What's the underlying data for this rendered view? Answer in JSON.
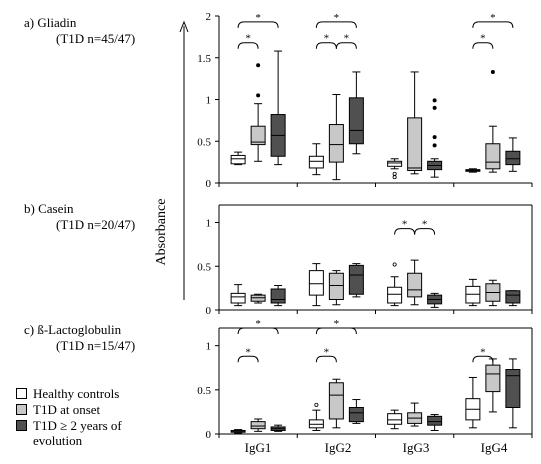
{
  "ylabel": "Absorbance",
  "legend": [
    {
      "label": "Healthy controls",
      "color": "#ffffff"
    },
    {
      "label": "T1D at onset",
      "color": "#c8c8c8"
    },
    {
      "label": "T1D ≥ 2 years of",
      "label2": "evolution",
      "color": "#505050"
    }
  ],
  "chart_data": [
    {
      "type": "boxplot",
      "title": "a) Gliadin",
      "subtitle": "(T1D n=45/47)",
      "categories": [
        "IgG1",
        "IgG2",
        "IgG3",
        "IgG4"
      ],
      "ylim": [
        0,
        2
      ],
      "yticks": [
        "0",
        "0.5",
        "1",
        "1.5",
        "2"
      ],
      "groups": [
        "Healthy controls",
        "T1D at onset",
        "T1D ≥ 2 years of evolution"
      ],
      "boxes": [
        [
          {
            "min": 0.22,
            "q1": 0.23,
            "med": 0.29,
            "q3": 0.33,
            "max": 0.37,
            "outliers": []
          },
          {
            "min": 0.26,
            "q1": 0.46,
            "med": 0.49,
            "q3": 0.68,
            "max": 0.95,
            "outliers": [
              1.05,
              1.41
            ]
          },
          {
            "min": 0.22,
            "q1": 0.32,
            "med": 0.57,
            "q3": 0.82,
            "max": 1.58,
            "outliers": []
          }
        ],
        [
          {
            "min": 0.1,
            "q1": 0.18,
            "med": 0.26,
            "q3": 0.32,
            "max": 0.47,
            "outliers": []
          },
          {
            "min": 0.04,
            "q1": 0.25,
            "med": 0.46,
            "q3": 0.7,
            "max": 1.06,
            "outliers": []
          },
          {
            "min": 0.35,
            "q1": 0.47,
            "med": 0.63,
            "q3": 1.02,
            "max": 1.33,
            "outliers": []
          }
        ],
        [
          {
            "min": 0.17,
            "q1": 0.2,
            "med": 0.24,
            "q3": 0.26,
            "max": 0.29,
            "outliers": [
              0.07,
              0.11
            ]
          },
          {
            "min": 0.11,
            "q1": 0.15,
            "med": 0.18,
            "q3": 0.78,
            "max": 1.33,
            "outliers": []
          },
          {
            "min": 0.07,
            "q1": 0.16,
            "med": 0.21,
            "q3": 0.26,
            "max": 0.29,
            "outliers": [
              0.45,
              0.55,
              0.9,
              0.99
            ]
          }
        ],
        [
          {
            "min": 0.13,
            "q1": 0.14,
            "med": 0.15,
            "q3": 0.16,
            "max": 0.17,
            "outliers": []
          },
          {
            "min": 0.13,
            "q1": 0.17,
            "med": 0.25,
            "q3": 0.47,
            "max": 0.68,
            "outliers": [
              1.33
            ]
          },
          {
            "min": 0.14,
            "q1": 0.22,
            "med": 0.29,
            "q3": 0.38,
            "max": 0.54,
            "outliers": []
          }
        ]
      ],
      "significance": [
        {
          "from": [
            0,
            0
          ],
          "to": [
            0,
            1
          ],
          "y": 1.68,
          "label": "*"
        },
        {
          "from": [
            0,
            0
          ],
          "to": [
            0,
            2
          ],
          "y": 1.93,
          "label": "*"
        },
        {
          "from": [
            1,
            0
          ],
          "to": [
            1,
            1
          ],
          "y": 1.68,
          "label": "*"
        },
        {
          "from": [
            1,
            1
          ],
          "to": [
            1,
            2
          ],
          "y": 1.68,
          "label": "*"
        },
        {
          "from": [
            1,
            0
          ],
          "to": [
            1,
            2
          ],
          "y": 1.93,
          "label": "*"
        },
        {
          "from": [
            3,
            0
          ],
          "to": [
            3,
            1
          ],
          "y": 1.68,
          "label": "*"
        },
        {
          "from": [
            3,
            0
          ],
          "to": [
            3,
            2
          ],
          "y": 1.93,
          "label": "*"
        }
      ]
    },
    {
      "type": "boxplot",
      "title": "b) Casein",
      "subtitle": "(T1D n=20/47)",
      "categories": [
        "IgG1",
        "IgG2",
        "IgG3",
        "IgG4"
      ],
      "ylim": [
        0,
        1.2
      ],
      "yticks": [
        "0",
        "0.5",
        "1"
      ],
      "groups": [
        "Healthy controls",
        "T1D at onset",
        "T1D ≥ 2 years of evolution"
      ],
      "boxes": [
        [
          {
            "min": 0.05,
            "q1": 0.08,
            "med": 0.15,
            "q3": 0.19,
            "max": 0.29,
            "outliers": []
          },
          {
            "min": 0.08,
            "q1": 0.1,
            "med": 0.14,
            "q3": 0.17,
            "max": 0.18,
            "outliers": []
          },
          {
            "min": 0.05,
            "q1": 0.08,
            "med": 0.12,
            "q3": 0.24,
            "max": 0.28,
            "outliers": []
          }
        ],
        [
          {
            "min": 0.05,
            "q1": 0.17,
            "med": 0.3,
            "q3": 0.45,
            "max": 0.53,
            "outliers": []
          },
          {
            "min": 0.06,
            "q1": 0.12,
            "med": 0.28,
            "q3": 0.42,
            "max": 0.45,
            "outliers": []
          },
          {
            "min": 0.15,
            "q1": 0.18,
            "med": 0.4,
            "q3": 0.51,
            "max": 0.53,
            "outliers": []
          }
        ],
        [
          {
            "min": 0.05,
            "q1": 0.08,
            "med": 0.18,
            "q3": 0.26,
            "max": 0.38,
            "outliers": [
              0.52
            ]
          },
          {
            "min": 0.06,
            "q1": 0.15,
            "med": 0.23,
            "q3": 0.42,
            "max": 0.57,
            "outliers": []
          },
          {
            "min": 0.03,
            "q1": 0.07,
            "med": 0.12,
            "q3": 0.17,
            "max": 0.19,
            "outliers": []
          }
        ],
        [
          {
            "min": 0.05,
            "q1": 0.08,
            "med": 0.18,
            "q3": 0.27,
            "max": 0.35,
            "outliers": []
          },
          {
            "min": 0.05,
            "q1": 0.1,
            "med": 0.2,
            "q3": 0.3,
            "max": 0.34,
            "outliers": []
          },
          {
            "min": 0.05,
            "q1": 0.08,
            "med": 0.17,
            "q3": 0.22,
            "max": 0.22,
            "outliers": []
          }
        ]
      ],
      "significance": [
        {
          "from": [
            2,
            0
          ],
          "to": [
            2,
            1
          ],
          "y": 0.93,
          "label": "*"
        },
        {
          "from": [
            2,
            1
          ],
          "to": [
            2,
            2
          ],
          "y": 0.93,
          "label": "*"
        }
      ]
    },
    {
      "type": "boxplot",
      "title": "c) ß-Lactoglobulin",
      "subtitle": "(T1D n=15/47)",
      "categories": [
        "IgG1",
        "IgG2",
        "IgG3",
        "IgG4"
      ],
      "ylim": [
        0,
        1.2
      ],
      "yticks": [
        "0",
        "0.5",
        "1"
      ],
      "groups": [
        "Healthy controls",
        "T1D at onset",
        "T1D ≥ 2 years of evolution"
      ],
      "boxes": [
        [
          {
            "min": 0.01,
            "q1": 0.02,
            "med": 0.03,
            "q3": 0.04,
            "max": 0.05,
            "outliers": []
          },
          {
            "min": 0.03,
            "q1": 0.06,
            "med": 0.09,
            "q3": 0.14,
            "max": 0.17,
            "outliers": []
          },
          {
            "min": 0.03,
            "q1": 0.04,
            "med": 0.06,
            "q3": 0.08,
            "max": 0.1,
            "outliers": []
          }
        ],
        [
          {
            "min": 0.04,
            "q1": 0.07,
            "med": 0.11,
            "q3": 0.16,
            "max": 0.27,
            "outliers": [
              0.33
            ]
          },
          {
            "min": 0.07,
            "q1": 0.17,
            "med": 0.44,
            "q3": 0.58,
            "max": 0.62,
            "outliers": []
          },
          {
            "min": 0.12,
            "q1": 0.14,
            "med": 0.24,
            "q3": 0.3,
            "max": 0.39,
            "outliers": []
          }
        ],
        [
          {
            "min": 0.06,
            "q1": 0.11,
            "med": 0.16,
            "q3": 0.23,
            "max": 0.27,
            "outliers": []
          },
          {
            "min": 0.09,
            "q1": 0.12,
            "med": 0.18,
            "q3": 0.24,
            "max": 0.35,
            "outliers": []
          },
          {
            "min": 0.04,
            "q1": 0.1,
            "med": 0.14,
            "q3": 0.2,
            "max": 0.22,
            "outliers": []
          }
        ],
        [
          {
            "min": 0.07,
            "q1": 0.16,
            "med": 0.28,
            "q3": 0.4,
            "max": 0.64,
            "outliers": []
          },
          {
            "min": 0.25,
            "q1": 0.48,
            "med": 0.68,
            "q3": 0.78,
            "max": 0.85,
            "outliers": []
          },
          {
            "min": 0.07,
            "q1": 0.3,
            "med": 0.66,
            "q3": 0.73,
            "max": 0.85,
            "outliers": []
          }
        ]
      ],
      "significance": [
        {
          "from": [
            0,
            0
          ],
          "to": [
            0,
            1
          ],
          "y": 0.88,
          "label": "*"
        },
        {
          "from": [
            0,
            0
          ],
          "to": [
            0,
            2
          ],
          "y": 1.2,
          "label": "*"
        },
        {
          "from": [
            1,
            0
          ],
          "to": [
            1,
            1
          ],
          "y": 0.88,
          "label": "*"
        },
        {
          "from": [
            1,
            0
          ],
          "to": [
            1,
            2
          ],
          "y": 1.2,
          "label": "*"
        },
        {
          "from": [
            3,
            0
          ],
          "to": [
            3,
            1
          ],
          "y": 0.88,
          "label": "*"
        }
      ]
    }
  ]
}
